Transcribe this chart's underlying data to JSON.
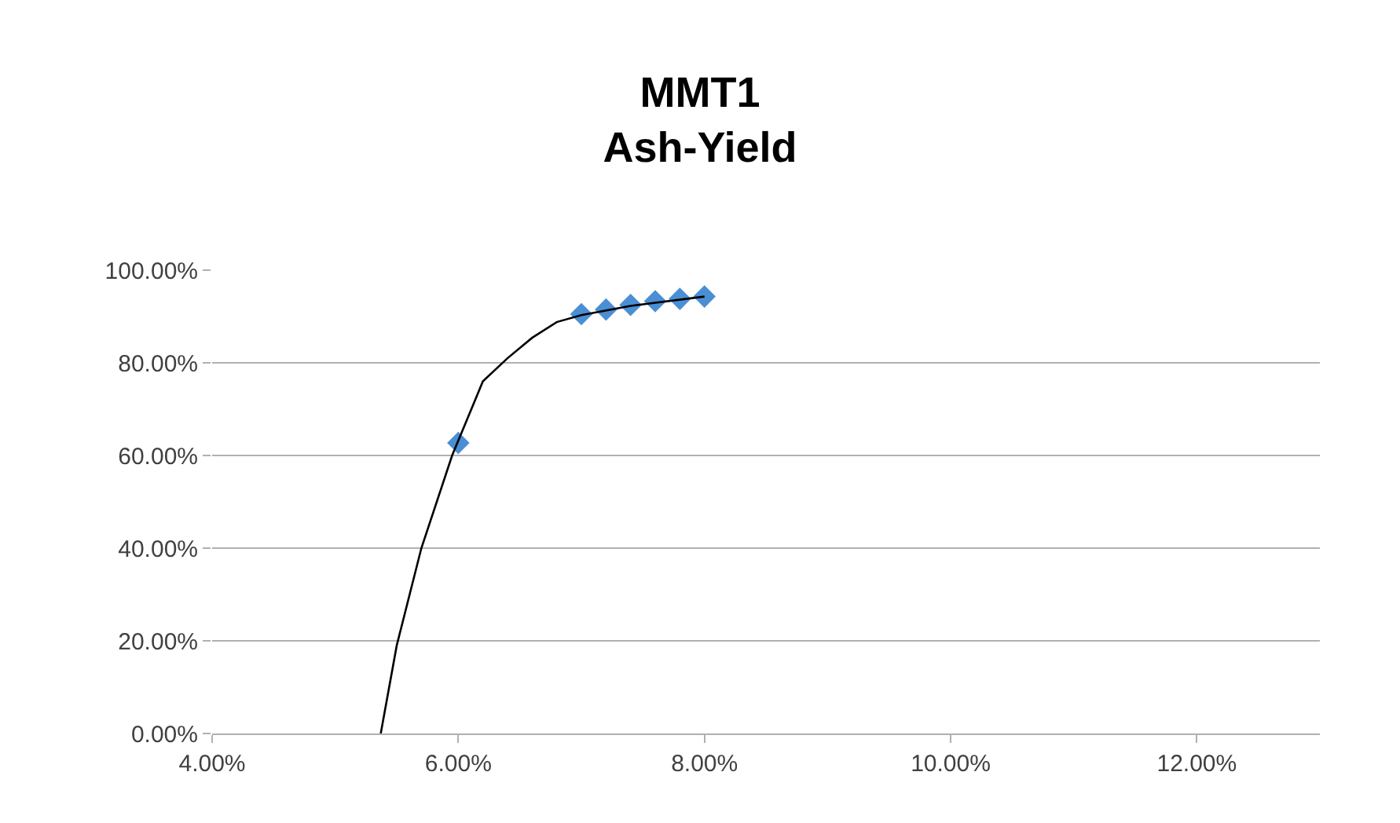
{
  "chart_data": {
    "type": "scatter",
    "title": "MMT1\nAsh-Yield",
    "xlim": [
      4,
      13
    ],
    "xticks": [
      {
        "value": 4,
        "label": "4.00%"
      },
      {
        "value": 6,
        "label": "6.00%"
      },
      {
        "value": 8,
        "label": "8.00%"
      },
      {
        "value": 10,
        "label": "10.00%"
      },
      {
        "value": 12,
        "label": "12.00%"
      }
    ],
    "ylim": [
      0,
      100
    ],
    "yticks": [
      {
        "value": 0,
        "label": "0.00%"
      },
      {
        "value": 20,
        "label": "20.00%"
      },
      {
        "value": 40,
        "label": "40.00%"
      },
      {
        "value": 60,
        "label": "60.00%"
      },
      {
        "value": 80,
        "label": "80.00%"
      },
      {
        "value": 100,
        "label": "100.00%"
      }
    ],
    "grid": "y",
    "marker": "diamond",
    "series": [
      {
        "color": "#4a8fd4",
        "x": [
          6.0,
          7.0,
          7.2,
          7.4,
          7.6,
          7.8,
          8.0
        ],
        "values": [
          62.7,
          90.5,
          91.5,
          92.5,
          93.3,
          93.8,
          94.3
        ]
      },
      {
        "type": "line",
        "color": "#000000",
        "marker": "none",
        "line_style": "solid",
        "x": [
          5.37,
          5.5,
          5.7,
          5.95,
          6.2,
          6.4,
          6.6,
          6.8,
          7.0,
          7.4,
          8.0
        ],
        "values": [
          0,
          19,
          40,
          60,
          76,
          81,
          85.4,
          88.8,
          90.3,
          92.3,
          94.3
        ]
      }
    ]
  }
}
